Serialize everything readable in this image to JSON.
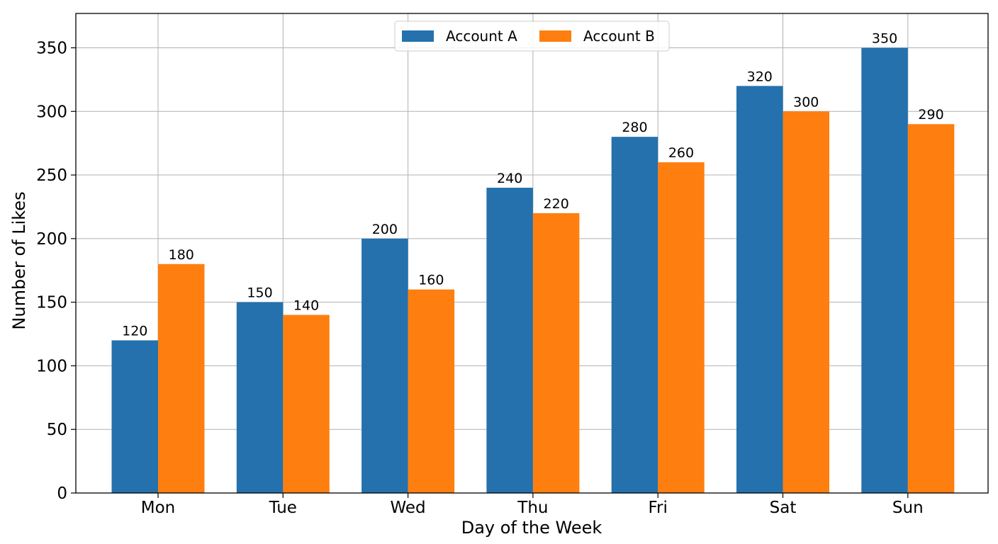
{
  "chart_data": {
    "type": "bar",
    "categories": [
      "Mon",
      "Tue",
      "Wed",
      "Thu",
      "Fri",
      "Sat",
      "Sun"
    ],
    "series": [
      {
        "name": "Account A",
        "values": [
          120,
          150,
          200,
          240,
          280,
          320,
          350
        ],
        "color": "#2471ad"
      },
      {
        "name": "Account B",
        "values": [
          180,
          140,
          160,
          220,
          260,
          300,
          290
        ],
        "color": "#fe7f0f"
      }
    ],
    "title": "",
    "xlabel": "Day of the Week",
    "ylabel": "Number of Likes",
    "ylim": [
      0,
      377
    ],
    "yticks": [
      0,
      50,
      100,
      150,
      200,
      250,
      300,
      350
    ],
    "grid": true,
    "legend_position": "top-center",
    "data_labels": true
  }
}
